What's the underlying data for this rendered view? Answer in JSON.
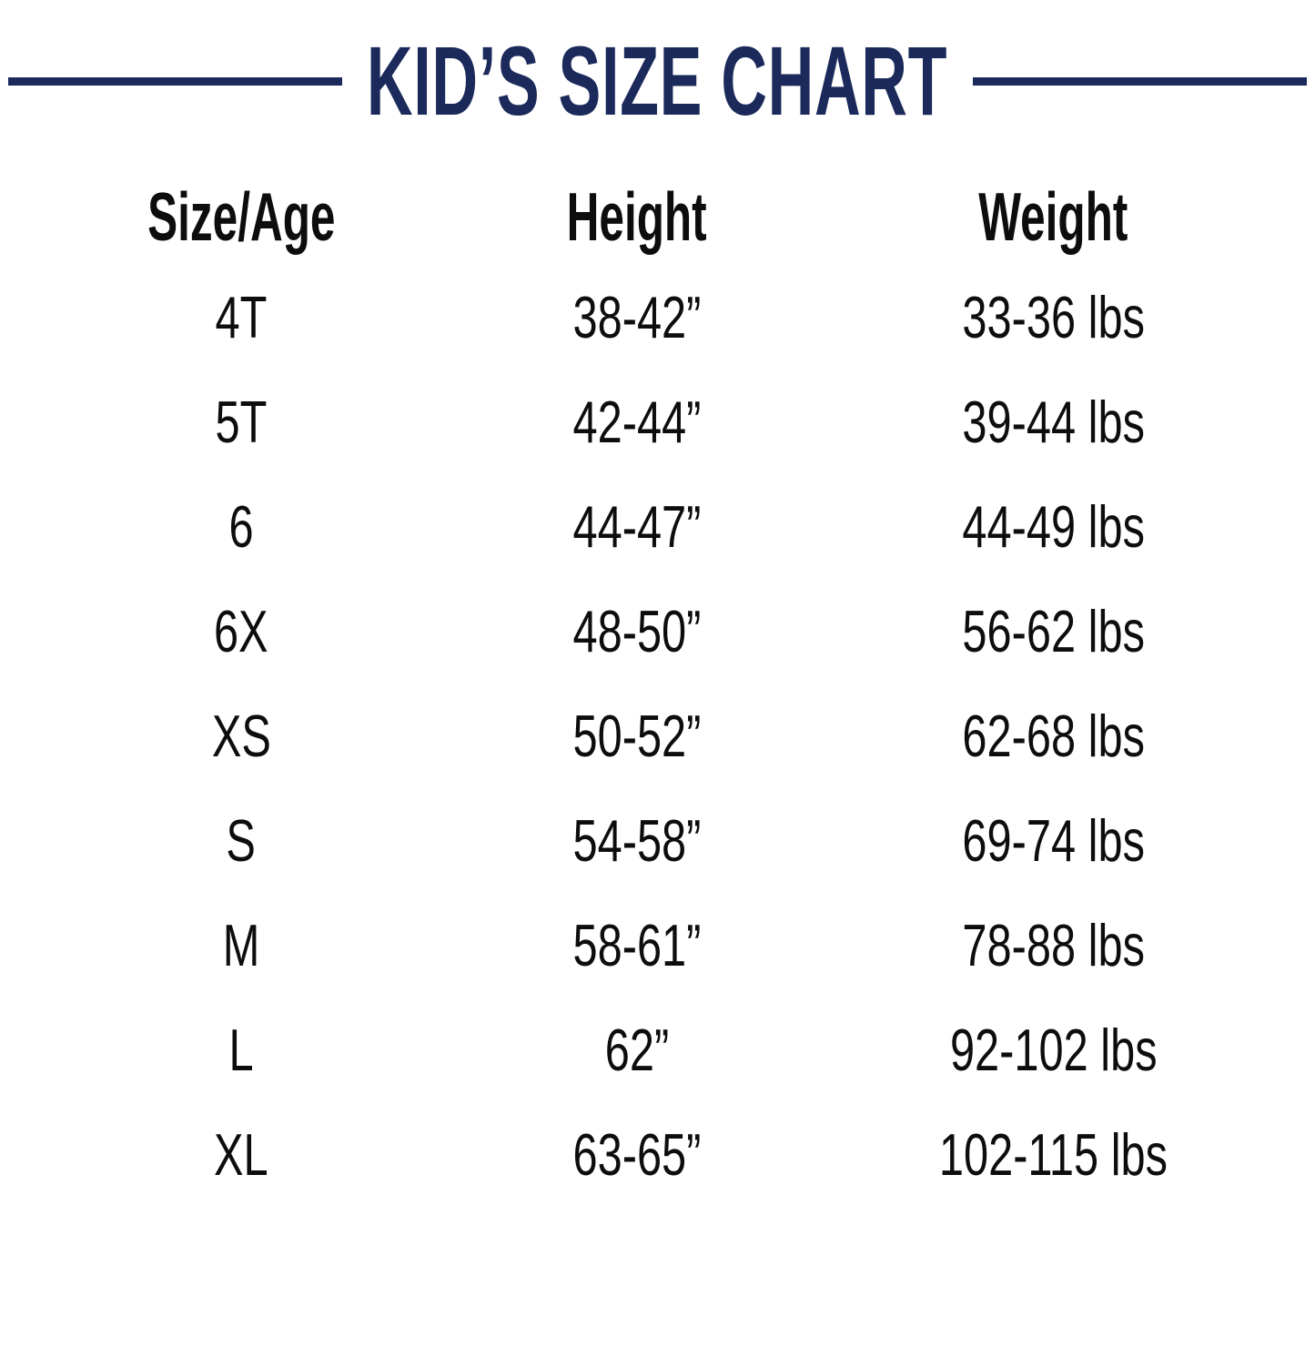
{
  "title": "KID’S SIZE CHART",
  "colors": {
    "accent_navy": "#1b2a5a",
    "text_black": "#0d0d0d",
    "background": "#ffffff"
  },
  "chart_data": {
    "type": "table",
    "title": "KID’S SIZE CHART",
    "columns": [
      "Size/Age",
      "Height",
      "Weight"
    ],
    "rows": [
      [
        "4T",
        "38-42”",
        "33-36 lbs"
      ],
      [
        "5T",
        "42-44”",
        "39-44 lbs"
      ],
      [
        "6",
        "44-47”",
        "44-49 lbs"
      ],
      [
        "6X",
        "48-50”",
        "56-62 lbs"
      ],
      [
        "XS",
        "50-52”",
        "62-68 lbs"
      ],
      [
        "S",
        "54-58”",
        "69-74 lbs"
      ],
      [
        "M",
        "58-61”",
        "78-88 lbs"
      ],
      [
        "L",
        "62”",
        "92-102 lbs"
      ],
      [
        "XL",
        "63-65”",
        "102-115 lbs"
      ]
    ]
  }
}
